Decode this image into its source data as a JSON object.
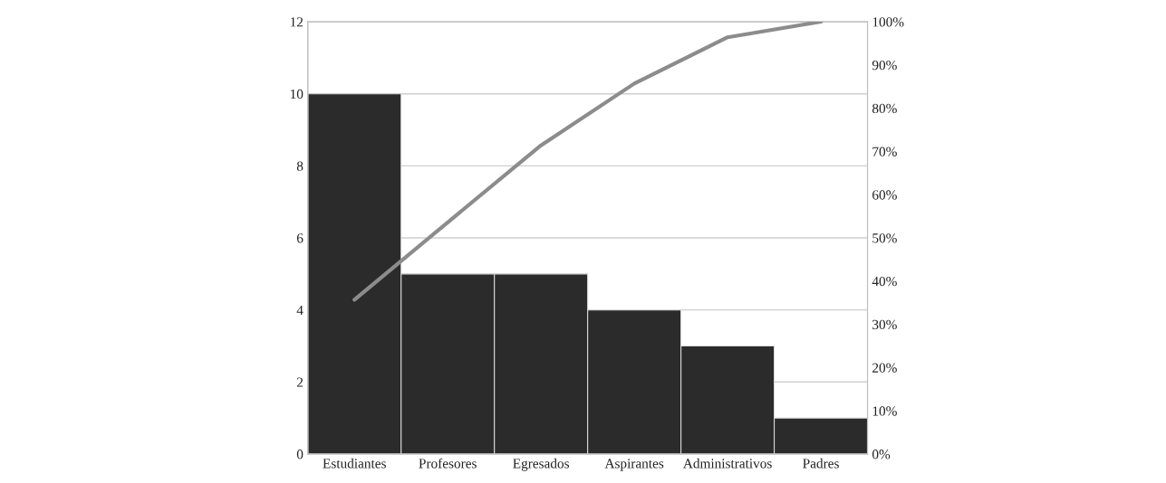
{
  "chart_data": {
    "type": "bar",
    "categories": [
      "Estudiantes",
      "Profesores",
      "Egresados",
      "Aspirantes",
      "Administrativos",
      "Padres"
    ],
    "series": [
      {
        "color": "#2b2b2b",
        "values": [
          10,
          5,
          5,
          4,
          3,
          1
        ]
      },
      {
        "type": "line",
        "axis": "y2",
        "color": "#8c8c8c",
        "values": [
          35.7,
          53.6,
          71.4,
          85.7,
          96.4,
          100
        ]
      }
    ],
    "ylim": [
      0,
      12
    ],
    "yticks": [
      0,
      2,
      4,
      6,
      8,
      10,
      12
    ],
    "y2lim": [
      0,
      100
    ],
    "y2ticks": [
      {
        "value": 0,
        "label": "0%"
      },
      {
        "value": 10,
        "label": "10%"
      },
      {
        "value": 20,
        "label": "20%"
      },
      {
        "value": 30,
        "label": "30%"
      },
      {
        "value": 40,
        "label": "40%"
      },
      {
        "value": 50,
        "label": "50%"
      },
      {
        "value": 60,
        "label": "60%"
      },
      {
        "value": 70,
        "label": "70%"
      },
      {
        "value": 80,
        "label": "80%"
      },
      {
        "value": 90,
        "label": "90%"
      },
      {
        "value": 100,
        "label": "100%"
      }
    ],
    "grid": "y",
    "marker": "none",
    "line_style": "solid"
  }
}
